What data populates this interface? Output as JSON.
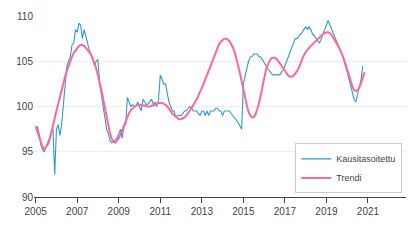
{
  "chart_data": {
    "type": "line",
    "xlim": [
      2004.92,
      2022.83
    ],
    "xticks": [
      2005,
      2007,
      2009,
      2011,
      2013,
      2015,
      2017,
      2019,
      2021
    ],
    "ylim": [
      90,
      110
    ],
    "yticks": [
      90,
      95,
      100,
      105,
      110
    ],
    "grid": true,
    "legend": "lower right",
    "series": [
      {
        "name": "Kausitasoitettu",
        "color": "#3399cc",
        "x": [
          2005,
          2005.0833,
          2005.1667,
          2005.25,
          2005.3333,
          2005.4167,
          2005.5,
          2005.5833,
          2005.6667,
          2005.75,
          2005.8333,
          2005.9167,
          2006,
          2006.0833,
          2006.1667,
          2006.25,
          2006.3333,
          2006.4167,
          2006.5,
          2006.5833,
          2006.6667,
          2006.75,
          2006.8333,
          2006.9167,
          2007,
          2007.0833,
          2007.1667,
          2007.25,
          2007.3333,
          2007.4167,
          2007.5,
          2007.5833,
          2007.6667,
          2007.75,
          2007.8333,
          2007.9167,
          2008,
          2008.0833,
          2008.1667,
          2008.25,
          2008.3333,
          2008.4167,
          2008.5,
          2008.5833,
          2008.6667,
          2008.75,
          2008.8333,
          2008.9167,
          2009,
          2009.0833,
          2009.1667,
          2009.25,
          2009.3333,
          2009.4167,
          2009.5,
          2009.5833,
          2009.6667,
          2009.75,
          2009.8333,
          2009.9167,
          2010,
          2010.0833,
          2010.1667,
          2010.25,
          2010.3333,
          2010.4167,
          2010.5,
          2010.5833,
          2010.6667,
          2010.75,
          2010.8333,
          2010.9167,
          2011,
          2011.0833,
          2011.1667,
          2011.25,
          2011.3333,
          2011.4167,
          2011.5,
          2011.5833,
          2011.6667,
          2011.75,
          2011.8333,
          2011.9167,
          2012,
          2012.0833,
          2012.1667,
          2012.25,
          2012.3333,
          2012.4167,
          2012.5,
          2012.5833,
          2012.6667,
          2012.75,
          2012.8333,
          2012.9167,
          2013,
          2013.0833,
          2013.1667,
          2013.25,
          2013.3333,
          2013.4167,
          2013.5,
          2013.5833,
          2013.6667,
          2013.75,
          2013.8333,
          2013.9167,
          2014,
          2014.0833,
          2014.1667,
          2014.25,
          2014.3333,
          2014.4167,
          2014.5,
          2014.5833,
          2014.6667,
          2014.75,
          2014.8333,
          2014.9167,
          2015,
          2015.0833,
          2015.1667,
          2015.25,
          2015.3333,
          2015.4167,
          2015.5,
          2015.5833,
          2015.6667,
          2015.75,
          2015.8333,
          2015.9167,
          2016,
          2016.0833,
          2016.1667,
          2016.25,
          2016.3333,
          2016.4167,
          2016.5,
          2016.5833,
          2016.6667,
          2016.75,
          2016.8333,
          2016.9167,
          2017,
          2017.0833,
          2017.1667,
          2017.25,
          2017.3333,
          2017.4167,
          2017.5,
          2017.5833,
          2017.6667,
          2017.75,
          2017.8333,
          2017.9167,
          2018,
          2018.0833,
          2018.1667,
          2018.25,
          2018.3333,
          2018.4167,
          2018.5,
          2018.5833,
          2018.6667,
          2018.75,
          2018.8333,
          2018.9167,
          2019,
          2019.0833,
          2019.1667,
          2019.25,
          2019.3333,
          2019.4167,
          2019.5,
          2019.5833,
          2019.6667,
          2019.75,
          2019.8333,
          2019.9167,
          2020,
          2020.0833,
          2020.1667,
          2020.25,
          2020.3333,
          2020.4167,
          2020.5,
          2020.5833,
          2020.6667,
          2020.75
        ],
        "values": [
          97.6,
          97.8,
          97.0,
          95.8,
          95.2,
          95.0,
          95.6,
          96.0,
          96.5,
          97.2,
          97.5,
          92.5,
          97.5,
          98.0,
          96.8,
          98.0,
          100.5,
          102.0,
          104.5,
          105.0,
          105.5,
          106.8,
          107.0,
          108.5,
          108.2,
          109.2,
          109.0,
          107.5,
          108.5,
          107.8,
          107.0,
          106.2,
          105.8,
          105.0,
          104.5,
          105.0,
          105.2,
          102.5,
          101.2,
          100.0,
          98.5,
          97.5,
          97.0,
          96.2,
          96.0,
          96.2,
          96.3,
          96.5,
          97.0,
          97.5,
          96.5,
          97.8,
          98.0,
          101.0,
          100.5,
          100.0,
          100.2,
          100.0,
          100.0,
          100.5,
          100.0,
          99.5,
          100.8,
          100.5,
          100.2,
          100.3,
          100.5,
          100.8,
          100.2,
          100.5,
          100.0,
          100.8,
          103.5,
          103.0,
          102.5,
          102.5,
          101.5,
          100.5,
          100.0,
          99.5,
          99.5,
          98.8,
          99.0,
          99.0,
          99.0,
          99.2,
          99.5,
          99.5,
          99.8,
          100.0,
          99.8,
          99.5,
          99.5,
          99.5,
          99.2,
          99.0,
          99.5,
          99.5,
          99.0,
          99.5,
          99.0,
          99.5,
          99.5,
          99.5,
          99.8,
          99.8,
          99.5,
          99.5,
          99.0,
          99.5,
          99.5,
          99.5,
          99.5,
          99.2,
          99.0,
          98.8,
          98.5,
          98.2,
          97.8,
          97.5,
          102.5,
          103.5,
          104.2,
          105.0,
          105.5,
          105.5,
          105.8,
          105.8,
          105.8,
          105.5,
          105.5,
          105.2,
          104.8,
          104.5,
          104.2,
          104.0,
          103.8,
          103.5,
          103.5,
          103.5,
          103.5,
          103.5,
          103.8,
          104.0,
          104.5,
          105.0,
          105.5,
          106.0,
          106.5,
          107.0,
          107.5,
          107.5,
          107.8,
          108.0,
          108.2,
          108.5,
          108.8,
          108.5,
          108.8,
          108.5,
          108.0,
          107.8,
          107.5,
          107.2,
          107.0,
          107.5,
          108.0,
          108.5,
          109.2,
          109.5,
          109.0,
          108.5,
          108.0,
          107.5,
          107.0,
          106.5,
          106.2,
          105.8,
          105.2,
          104.5,
          103.8,
          103.0,
          102.2,
          101.5,
          100.8,
          100.5,
          101.2,
          102.2,
          103.0,
          104.5
        ]
      },
      {
        "name": "Trendi",
        "color": "#ff6699",
        "x": [
          2005,
          2005.0833,
          2005.1667,
          2005.25,
          2005.3333,
          2005.4167,
          2005.5,
          2005.5833,
          2005.6667,
          2005.75,
          2005.8333,
          2005.9167,
          2006,
          2006.0833,
          2006.1667,
          2006.25,
          2006.3333,
          2006.4167,
          2006.5,
          2006.5833,
          2006.6667,
          2006.75,
          2006.8333,
          2006.9167,
          2007,
          2007.0833,
          2007.1667,
          2007.25,
          2007.3333,
          2007.4167,
          2007.5,
          2007.5833,
          2007.6667,
          2007.75,
          2007.8333,
          2007.9167,
          2008,
          2008.0833,
          2008.1667,
          2008.25,
          2008.3333,
          2008.4167,
          2008.5,
          2008.5833,
          2008.6667,
          2008.75,
          2008.8333,
          2008.9167,
          2009,
          2009.0833,
          2009.1667,
          2009.25,
          2009.3333,
          2009.4167,
          2009.5,
          2009.5833,
          2009.6667,
          2009.75,
          2009.8333,
          2009.9167,
          2010,
          2010.0833,
          2010.1667,
          2010.25,
          2010.3333,
          2010.4167,
          2010.5,
          2010.5833,
          2010.6667,
          2010.75,
          2010.8333,
          2010.9167,
          2011,
          2011.0833,
          2011.1667,
          2011.25,
          2011.3333,
          2011.4167,
          2011.5,
          2011.5833,
          2011.6667,
          2011.75,
          2011.8333,
          2011.9167,
          2012,
          2012.0833,
          2012.1667,
          2012.25,
          2012.3333,
          2012.4167,
          2012.5,
          2012.5833,
          2012.6667,
          2012.75,
          2012.8333,
          2012.9167,
          2013,
          2013.0833,
          2013.1667,
          2013.25,
          2013.3333,
          2013.4167,
          2013.5,
          2013.5833,
          2013.6667,
          2013.75,
          2013.8333,
          2013.9167,
          2014,
          2014.0833,
          2014.1667,
          2014.25,
          2014.3333,
          2014.4167,
          2014.5,
          2014.5833,
          2014.6667,
          2014.75,
          2014.8333,
          2014.9167,
          2015,
          2015.0833,
          2015.1667,
          2015.25,
          2015.3333,
          2015.4167,
          2015.5,
          2015.5833,
          2015.6667,
          2015.75,
          2015.8333,
          2015.9167,
          2016,
          2016.0833,
          2016.1667,
          2016.25,
          2016.3333,
          2016.4167,
          2016.5,
          2016.5833,
          2016.6667,
          2016.75,
          2016.8333,
          2016.9167,
          2017,
          2017.0833,
          2017.1667,
          2017.25,
          2017.3333,
          2017.4167,
          2017.5,
          2017.5833,
          2017.6667,
          2017.75,
          2017.8333,
          2017.9167,
          2018,
          2018.0833,
          2018.1667,
          2018.25,
          2018.3333,
          2018.4167,
          2018.5,
          2018.5833,
          2018.6667,
          2018.75,
          2018.8333,
          2018.9167,
          2019,
          2019.0833,
          2019.1667,
          2019.25,
          2019.3333,
          2019.4167,
          2019.5,
          2019.5833,
          2019.6667,
          2019.75,
          2019.8333,
          2019.9167,
          2020,
          2020.0833,
          2020.1667,
          2020.25,
          2020.3333,
          2020.4167,
          2020.5,
          2020.5833,
          2020.6667,
          2020.75,
          2020.8333
        ],
        "values": [
          97.8,
          97.2,
          96.5,
          96.0,
          95.5,
          95.3,
          95.5,
          95.8,
          96.3,
          97.0,
          97.8,
          98.7,
          99.5,
          100.3,
          101.1,
          101.9,
          102.6,
          103.3,
          103.9,
          104.5,
          105.0,
          105.5,
          105.9,
          106.2,
          106.5,
          106.7,
          106.8,
          106.8,
          106.7,
          106.5,
          106.3,
          106.0,
          105.7,
          105.3,
          104.8,
          104.2,
          103.5,
          102.7,
          101.8,
          100.8,
          99.8,
          98.8,
          97.8,
          97.0,
          96.4,
          96.1,
          96.0,
          96.2,
          96.5,
          96.9,
          97.4,
          97.9,
          98.4,
          98.9,
          99.3,
          99.6,
          99.8,
          100.0,
          100.1,
          100.2,
          100.2,
          100.2,
          100.1,
          100.1,
          100.0,
          100.0,
          100.0,
          100.1,
          100.1,
          100.2,
          100.3,
          100.4,
          100.4,
          100.4,
          100.3,
          100.2,
          100.0,
          99.8,
          99.5,
          99.2,
          99.0,
          98.8,
          98.7,
          98.6,
          98.6,
          98.7,
          98.8,
          99.0,
          99.2,
          99.5,
          99.8,
          100.1,
          100.4,
          100.8,
          101.2,
          101.6,
          102.1,
          102.5,
          103.0,
          103.5,
          104.0,
          104.5,
          105.0,
          105.5,
          106.0,
          106.5,
          106.9,
          107.2,
          107.4,
          107.5,
          107.5,
          107.4,
          107.2,
          106.9,
          106.5,
          106.0,
          105.3,
          104.6,
          103.7,
          102.8,
          101.8,
          100.9,
          100.1,
          99.4,
          99.0,
          98.8,
          98.8,
          99.1,
          99.6,
          100.3,
          101.2,
          102.2,
          103.1,
          104.0,
          104.6,
          105.0,
          105.3,
          105.4,
          105.4,
          105.3,
          105.1,
          104.8,
          104.5,
          104.2,
          103.9,
          103.6,
          103.4,
          103.3,
          103.3,
          103.4,
          103.6,
          103.9,
          104.3,
          104.8,
          105.3,
          105.7,
          106.0,
          106.3,
          106.5,
          106.7,
          106.9,
          107.0,
          107.2,
          107.4,
          107.6,
          107.8,
          108.0,
          108.1,
          108.2,
          108.2,
          108.1,
          107.9,
          107.6,
          107.3,
          107.0,
          106.6,
          106.2,
          105.8,
          105.3,
          104.7,
          104.1,
          103.4,
          102.7,
          102.2,
          101.8,
          101.7,
          101.8,
          102.1,
          102.6,
          103.2,
          103.8
        ]
      }
    ]
  }
}
